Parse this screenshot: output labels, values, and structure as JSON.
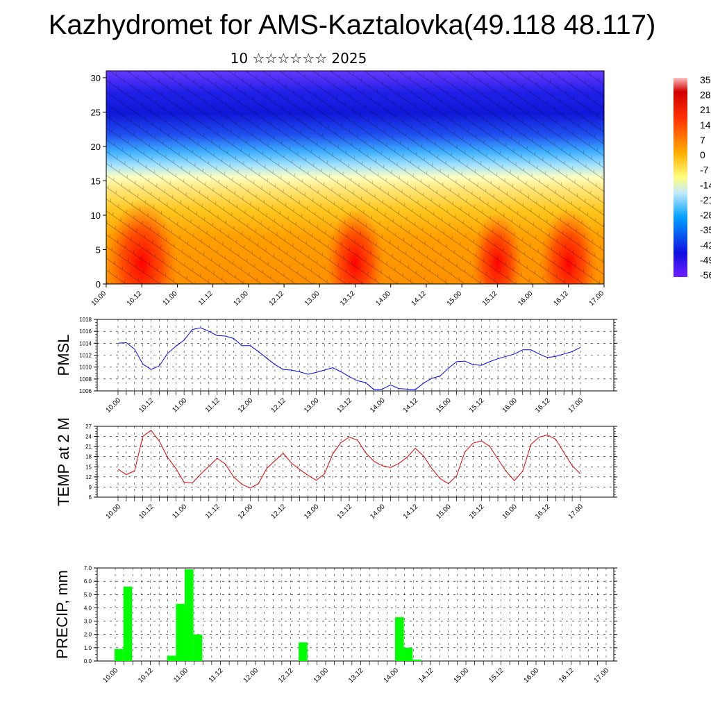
{
  "title": "Kazhydromet for AMS-Kaztalovka(49.118 48.117)",
  "subtitle": "10 ☆☆☆☆☆☆ 2025",
  "time_labels": [
    "10.00",
    "10.12",
    "11.00",
    "11.12",
    "12.00",
    "12.12",
    "13.00",
    "13.12",
    "14.00",
    "14.12",
    "15.00",
    "15.12",
    "16.00",
    "16.12",
    "17.00"
  ],
  "chart_data": [
    {
      "type": "heatmap",
      "name": "temperature_cross_section",
      "title": "",
      "ylim": [
        0,
        31
      ],
      "yticks": [
        0,
        5,
        10,
        15,
        20,
        25,
        30
      ],
      "x": [
        "10.00",
        "10.12",
        "11.00",
        "11.12",
        "12.00",
        "12.12",
        "13.00",
        "13.12",
        "14.00",
        "14.12",
        "15.00",
        "15.12",
        "16.00",
        "16.12",
        "17.00"
      ],
      "colorbar_labels": [
        "35",
        "28",
        "21",
        "14",
        "7",
        "0",
        "-7",
        "-14",
        "-21",
        "-28",
        "-35",
        "-42",
        "-49",
        "-56"
      ],
      "colorbar_range": [
        -56,
        35
      ],
      "overlay": "wind barbs",
      "warm_cores": [
        {
          "x": "10.12",
          "temp": 26
        },
        {
          "x": "13.12",
          "temp": 24
        },
        {
          "x": "15.12",
          "temp": 23
        },
        {
          "x": "16.12",
          "temp": 24
        }
      ],
      "colors": {
        "hot": "#ff0000",
        "warm": "#ff9000",
        "mild": "#ffd000",
        "cool": "#ffffb0",
        "cold": "#40c0ff",
        "freezing": "#0010d0",
        "deep": "#6020ff"
      }
    },
    {
      "type": "line",
      "name": "pmsl",
      "ylabel": "PMSL",
      "ylim": [
        1006,
        1018
      ],
      "yticks": [
        1006,
        1008,
        1010,
        1012,
        1014,
        1016,
        1018
      ],
      "x_step_hours": 3,
      "color": "#0000ff",
      "values": [
        1014.0,
        1014.1,
        1013.0,
        1010.5,
        1009.6,
        1010.2,
        1012.3,
        1013.5,
        1014.5,
        1016.3,
        1016.6,
        1016.0,
        1015.3,
        1015.2,
        1014.8,
        1013.6,
        1013.6,
        1012.6,
        1011.5,
        1010.4,
        1009.6,
        1009.5,
        1009.2,
        1008.8,
        1009.1,
        1009.5,
        1009.9,
        1009.2,
        1008.4,
        1007.7,
        1007.4,
        1006.2,
        1006.3,
        1007.0,
        1006.4,
        1006.3,
        1006.2,
        1007.3,
        1008.1,
        1008.5,
        1009.8,
        1010.9,
        1011.0,
        1010.4,
        1010.3,
        1010.9,
        1011.4,
        1011.8,
        1012.2,
        1012.9,
        1012.9,
        1012.2,
        1011.6,
        1011.8,
        1012.2,
        1012.6,
        1013.3
      ]
    },
    {
      "type": "line",
      "name": "temp_2m",
      "ylabel": "TEMP at 2 M",
      "ylim": [
        6,
        27
      ],
      "yticks": [
        6,
        9,
        12,
        15,
        18,
        21,
        24,
        27
      ],
      "x_step_hours": 3,
      "color": "#e00000",
      "values": [
        14.3,
        12.7,
        13.8,
        24.0,
        25.8,
        22.6,
        17.8,
        14.5,
        10.4,
        10.2,
        12.8,
        15.1,
        17.5,
        15.8,
        12.0,
        9.8,
        8.7,
        10.0,
        14.5,
        16.8,
        19.0,
        16.1,
        14.2,
        12.5,
        11.0,
        12.9,
        18.8,
        22.2,
        23.8,
        22.9,
        19.1,
        16.6,
        15.3,
        14.8,
        16.0,
        17.8,
        20.5,
        18.2,
        14.5,
        11.5,
        10.0,
        12.3,
        19.4,
        22.0,
        22.7,
        21.1,
        17.3,
        13.6,
        10.9,
        13.7,
        21.6,
        23.8,
        24.4,
        23.2,
        19.2,
        15.3,
        12.9
      ]
    },
    {
      "type": "bar",
      "name": "precip",
      "ylabel": "PRECIP, mm",
      "ylim": [
        0,
        7
      ],
      "yticks": [
        "0.0",
        "1.0",
        "2.0",
        "3.0",
        "4.0",
        "5.0",
        "6.0",
        "7.0"
      ],
      "x_step_hours": 3,
      "color": "#00ff00",
      "values": [
        0.9,
        5.6,
        0,
        0,
        0,
        0,
        0.4,
        4.3,
        6.9,
        2.0,
        0,
        0,
        0,
        0,
        0,
        0,
        0,
        0,
        0,
        0,
        0,
        1.4,
        0,
        0,
        0,
        0,
        0,
        0,
        0,
        0,
        0,
        0,
        3.3,
        1.0,
        0.1,
        0,
        0,
        0,
        0,
        0,
        0,
        0,
        0,
        0,
        0,
        0,
        0,
        0,
        0,
        0,
        0,
        0,
        0,
        0,
        0,
        0
      ]
    }
  ]
}
